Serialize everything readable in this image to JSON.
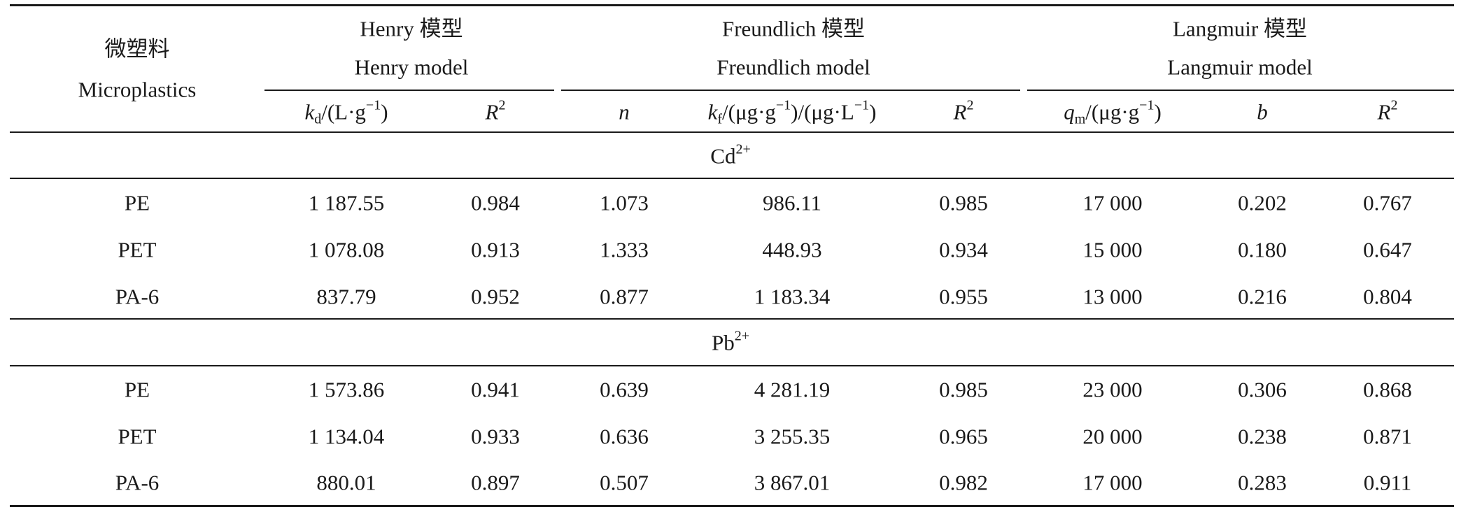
{
  "table": {
    "header": {
      "microplastics_cn": "微塑料",
      "microplastics_en": "Microplastics",
      "henry_cn": "Henry 模型",
      "henry_en": "Henry model",
      "freundlich_cn": "Freundlich 模型",
      "freundlich_en": "Freundlich model",
      "langmuir_cn": "Langmuir 模型",
      "langmuir_en": "Langmuir model",
      "kd_symbol": "k",
      "kd_sub": "d",
      "kd_unit_prefix": "/(L·g",
      "kd_unit_exp": "−1",
      "kd_unit_suffix": ")",
      "r2_symbol": "R",
      "r2_exp": "2",
      "n_symbol": "n",
      "kf_symbol": "k",
      "kf_sub": "f",
      "kf_unit_a": "/(μg·g",
      "kf_unit_a_exp": "−1",
      "kf_unit_b": ")/(μg·L",
      "kf_unit_b_exp": "−1",
      "kf_unit_c": ")",
      "qm_symbol": "q",
      "qm_sub": "m",
      "qm_unit_prefix": "/(μg·g",
      "qm_unit_exp": "−1",
      "qm_unit_suffix": ")",
      "b_symbol": "b"
    },
    "sections": [
      {
        "ion_base": "Cd",
        "ion_charge": "2+",
        "rows": [
          {
            "name": "PE",
            "kd": "1 187.55",
            "henry_r2": "0.984",
            "n": "1.073",
            "kf": "986.11",
            "freundlich_r2": "0.985",
            "qm": "17 000",
            "b": "0.202",
            "langmuir_r2": "0.767"
          },
          {
            "name": "PET",
            "kd": "1 078.08",
            "henry_r2": "0.913",
            "n": "1.333",
            "kf": "448.93",
            "freundlich_r2": "0.934",
            "qm": "15 000",
            "b": "0.180",
            "langmuir_r2": "0.647"
          },
          {
            "name": "PA-6",
            "kd": "837.79",
            "henry_r2": "0.952",
            "n": "0.877",
            "kf": "1 183.34",
            "freundlich_r2": "0.955",
            "qm": "13 000",
            "b": "0.216",
            "langmuir_r2": "0.804"
          }
        ]
      },
      {
        "ion_base": "Pb",
        "ion_charge": "2+",
        "rows": [
          {
            "name": "PE",
            "kd": "1 573.86",
            "henry_r2": "0.941",
            "n": "0.639",
            "kf": "4 281.19",
            "freundlich_r2": "0.985",
            "qm": "23 000",
            "b": "0.306",
            "langmuir_r2": "0.868"
          },
          {
            "name": "PET",
            "kd": "1 134.04",
            "henry_r2": "0.933",
            "n": "0.636",
            "kf": "3 255.35",
            "freundlich_r2": "0.965",
            "qm": "20 000",
            "b": "0.238",
            "langmuir_r2": "0.871"
          },
          {
            "name": "PA-6",
            "kd": "880.01",
            "henry_r2": "0.897",
            "n": "0.507",
            "kf": "3 867.01",
            "freundlich_r2": "0.982",
            "qm": "17 000",
            "b": "0.283",
            "langmuir_r2": "0.911"
          }
        ]
      }
    ]
  }
}
